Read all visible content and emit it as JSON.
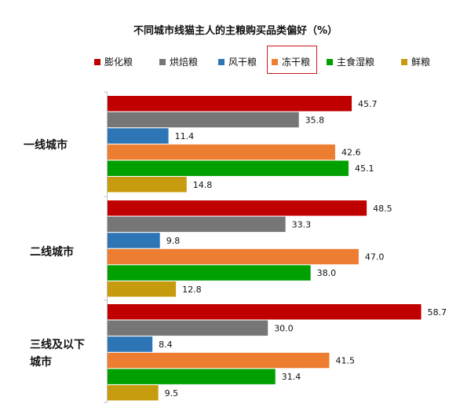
{
  "chart_data": {
    "type": "bar",
    "orientation": "horizontal",
    "title": "不同城市线猫主人的主粮购买品类偏好（%）",
    "categories": [
      "一线城市",
      "二线城市",
      "三线及以下城市"
    ],
    "series": [
      {
        "name": "膨化粮",
        "color": "#c00000",
        "values": [
          45.7,
          48.5,
          58.7
        ]
      },
      {
        "name": "烘焙粮",
        "color": "#767676",
        "values": [
          35.8,
          33.3,
          30.0
        ]
      },
      {
        "name": "风干粮",
        "color": "#2e75b6",
        "values": [
          11.4,
          9.8,
          8.4
        ]
      },
      {
        "name": "冻干粮",
        "color": "#ed7d31",
        "values": [
          42.6,
          47.0,
          41.5
        ]
      },
      {
        "name": "主食湿粮",
        "color": "#00a000",
        "values": [
          45.1,
          38.0,
          31.4
        ]
      },
      {
        "name": "鲜粮",
        "color": "#c79b0e",
        "values": [
          14.8,
          12.8,
          9.5
        ]
      }
    ],
    "value_labels": [
      [
        "45.7",
        "48.5",
        "58.7"
      ],
      [
        "35.8",
        "33.3",
        "30.0"
      ],
      [
        "11.4",
        "9.8",
        "8.4"
      ],
      [
        "42.6",
        "47.0",
        "41.5"
      ],
      [
        "45.1",
        "38.0",
        "31.4"
      ],
      [
        "14.8",
        "12.8",
        "9.5"
      ]
    ],
    "xlim": [
      0,
      62
    ],
    "grid": false,
    "legend_position": "top",
    "highlighted_series": "冻干粮",
    "highlight_color": "#d0161e"
  }
}
